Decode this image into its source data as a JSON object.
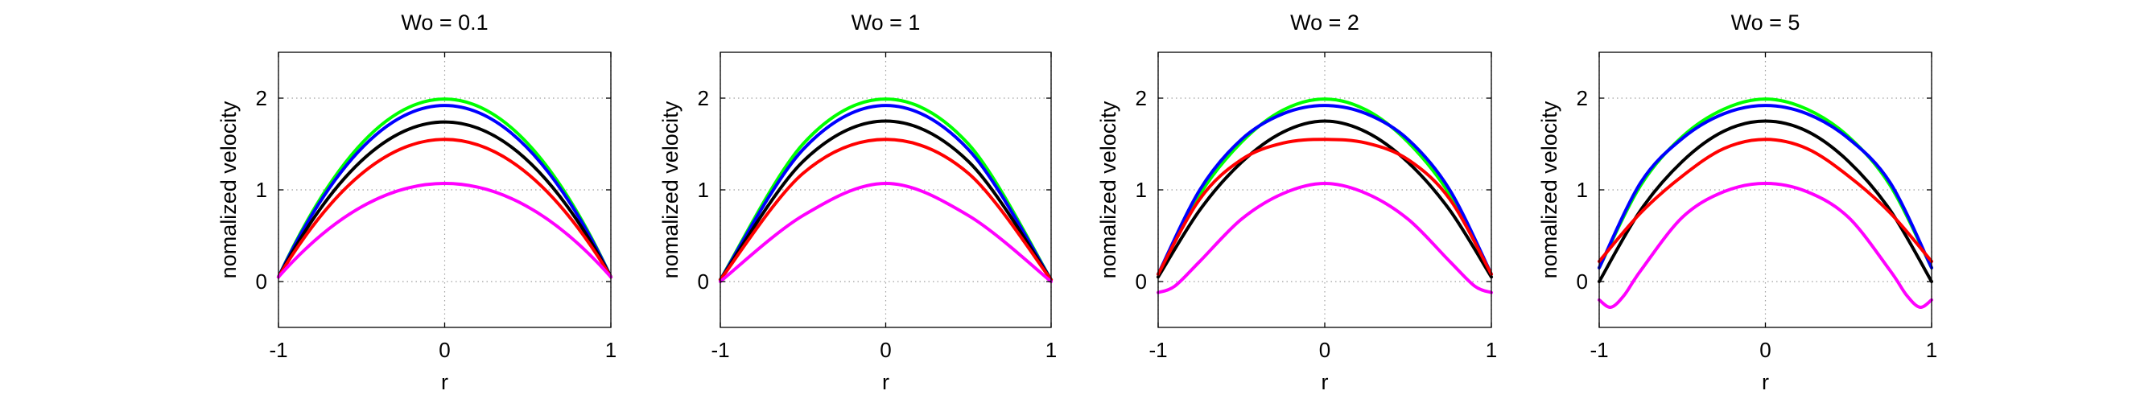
{
  "chart_data": [
    {
      "type": "line",
      "title": "Wo = 0.1",
      "xlabel": "r",
      "ylabel": "nomalized velocity",
      "xlim": [
        -1,
        1
      ],
      "ylim": [
        -0.5,
        2.5
      ],
      "xticks": [
        "-1",
        "0",
        "1"
      ],
      "yticks": [
        "0",
        "1",
        "2"
      ],
      "grid": true,
      "profile_curve": "parabolic",
      "series": [
        {
          "color": "#00ff00",
          "values": [
            {
              "r": -1,
              "v": 0.05
            },
            {
              "r": 0,
              "v": 1.99
            },
            {
              "r": 1,
              "v": 0.05
            }
          ]
        },
        {
          "color": "#0000ff",
          "values": [
            {
              "r": -1,
              "v": 0.05
            },
            {
              "r": 0,
              "v": 1.92
            },
            {
              "r": 1,
              "v": 0.05
            }
          ]
        },
        {
          "color": "#000000",
          "values": [
            {
              "r": -1,
              "v": 0.05
            },
            {
              "r": 0,
              "v": 1.74
            },
            {
              "r": 1,
              "v": 0.05
            }
          ]
        },
        {
          "color": "#ff0000",
          "values": [
            {
              "r": -1,
              "v": 0.05
            },
            {
              "r": 0,
              "v": 1.55
            },
            {
              "r": 1,
              "v": 0.05
            }
          ]
        },
        {
          "color": "#ff00ff",
          "values": [
            {
              "r": -1,
              "v": 0.05
            },
            {
              "r": 0,
              "v": 1.07
            },
            {
              "r": 1,
              "v": 0.05
            }
          ]
        }
      ]
    },
    {
      "type": "line",
      "title": "Wo = 1",
      "xlabel": "r",
      "ylabel": "nomalized velocity",
      "xlim": [
        -1,
        1
      ],
      "ylim": [
        -0.5,
        2.5
      ],
      "xticks": [
        "-1",
        "0",
        "1"
      ],
      "yticks": [
        "0",
        "1",
        "2"
      ],
      "grid": true,
      "series": [
        {
          "color": "#00ff00",
          "values": [
            {
              "r": -1,
              "v": 0.02
            },
            {
              "r": -0.5,
              "v": 1.5
            },
            {
              "r": 0,
              "v": 1.99
            },
            {
              "r": 0.5,
              "v": 1.5
            },
            {
              "r": 1,
              "v": 0.02
            }
          ]
        },
        {
          "color": "#0000ff",
          "values": [
            {
              "r": -1,
              "v": 0.02
            },
            {
              "r": -0.5,
              "v": 1.44
            },
            {
              "r": 0,
              "v": 1.92
            },
            {
              "r": 0.5,
              "v": 1.44
            },
            {
              "r": 1,
              "v": 0.02
            }
          ]
        },
        {
          "color": "#000000",
          "values": [
            {
              "r": -1,
              "v": 0.02
            },
            {
              "r": -0.5,
              "v": 1.31
            },
            {
              "r": 0,
              "v": 1.75
            },
            {
              "r": 0.5,
              "v": 1.31
            },
            {
              "r": 1,
              "v": 0.02
            }
          ]
        },
        {
          "color": "#ff0000",
          "values": [
            {
              "r": -1,
              "v": 0.02
            },
            {
              "r": -0.5,
              "v": 1.18
            },
            {
              "r": 0,
              "v": 1.55
            },
            {
              "r": 0.5,
              "v": 1.18
            },
            {
              "r": 1,
              "v": 0.02
            }
          ]
        },
        {
          "color": "#ff00ff",
          "values": [
            {
              "r": -1,
              "v": 0.0
            },
            {
              "r": -0.5,
              "v": 0.72
            },
            {
              "r": 0,
              "v": 1.07
            },
            {
              "r": 0.5,
              "v": 0.72
            },
            {
              "r": 1,
              "v": 0.0
            }
          ]
        }
      ]
    },
    {
      "type": "line",
      "title": "Wo = 2",
      "xlabel": "r",
      "ylabel": "nomalized velocity",
      "xlim": [
        -1,
        1
      ],
      "ylim": [
        -0.5,
        2.5
      ],
      "xticks": [
        "-1",
        "0",
        "1"
      ],
      "yticks": [
        "0",
        "1",
        "2"
      ],
      "grid": true,
      "series": [
        {
          "color": "#00ff00",
          "values": [
            {
              "r": -1,
              "v": 0.08
            },
            {
              "r": -0.75,
              "v": 0.95
            },
            {
              "r": -0.5,
              "v": 1.52
            },
            {
              "r": -0.25,
              "v": 1.87
            },
            {
              "r": 0,
              "v": 1.99
            },
            {
              "r": 0.25,
              "v": 1.87
            },
            {
              "r": 0.5,
              "v": 1.52
            },
            {
              "r": 0.75,
              "v": 0.95
            },
            {
              "r": 1,
              "v": 0.08
            }
          ]
        },
        {
          "color": "#0000ff",
          "values": [
            {
              "r": -1,
              "v": 0.08
            },
            {
              "r": -0.75,
              "v": 1.0
            },
            {
              "r": -0.5,
              "v": 1.55
            },
            {
              "r": -0.25,
              "v": 1.83
            },
            {
              "r": 0,
              "v": 1.92
            },
            {
              "r": 0.25,
              "v": 1.83
            },
            {
              "r": 0.5,
              "v": 1.55
            },
            {
              "r": 0.75,
              "v": 1.0
            },
            {
              "r": 1,
              "v": 0.08
            }
          ]
        },
        {
          "color": "#000000",
          "values": [
            {
              "r": -1,
              "v": 0.05
            },
            {
              "r": -0.75,
              "v": 0.78
            },
            {
              "r": -0.5,
              "v": 1.3
            },
            {
              "r": -0.25,
              "v": 1.63
            },
            {
              "r": 0,
              "v": 1.75
            },
            {
              "r": 0.25,
              "v": 1.63
            },
            {
              "r": 0.5,
              "v": 1.3
            },
            {
              "r": 0.75,
              "v": 0.78
            },
            {
              "r": 1,
              "v": 0.05
            }
          ]
        },
        {
          "color": "#ff0000",
          "values": [
            {
              "r": -1,
              "v": 0.08
            },
            {
              "r": -0.75,
              "v": 0.9
            },
            {
              "r": -0.5,
              "v": 1.33
            },
            {
              "r": -0.25,
              "v": 1.51
            },
            {
              "r": 0,
              "v": 1.55
            },
            {
              "r": 0.25,
              "v": 1.51
            },
            {
              "r": 0.5,
              "v": 1.33
            },
            {
              "r": 0.75,
              "v": 0.9
            },
            {
              "r": 1,
              "v": 0.08
            }
          ]
        },
        {
          "color": "#ff00ff",
          "values": [
            {
              "r": -1,
              "v": -0.12
            },
            {
              "r": -0.9,
              "v": -0.05
            },
            {
              "r": -0.75,
              "v": 0.22
            },
            {
              "r": -0.5,
              "v": 0.68
            },
            {
              "r": -0.25,
              "v": 0.96
            },
            {
              "r": 0,
              "v": 1.07
            },
            {
              "r": 0.25,
              "v": 0.96
            },
            {
              "r": 0.5,
              "v": 0.68
            },
            {
              "r": 0.75,
              "v": 0.22
            },
            {
              "r": 0.9,
              "v": -0.05
            },
            {
              "r": 1,
              "v": -0.12
            }
          ]
        }
      ]
    },
    {
      "type": "line",
      "title": "Wo = 5",
      "xlabel": "r",
      "ylabel": "nomalized velocity",
      "xlim": [
        -1,
        1
      ],
      "ylim": [
        -0.5,
        2.5
      ],
      "xticks": [
        "-1",
        "0",
        "1"
      ],
      "yticks": [
        "0",
        "1",
        "2"
      ],
      "grid": true,
      "series": [
        {
          "color": "#00ff00",
          "values": [
            {
              "r": -1,
              "v": 0.15
            },
            {
              "r": -0.75,
              "v": 1.05
            },
            {
              "r": -0.5,
              "v": 1.58
            },
            {
              "r": -0.25,
              "v": 1.88
            },
            {
              "r": 0,
              "v": 1.99
            },
            {
              "r": 0.25,
              "v": 1.88
            },
            {
              "r": 0.5,
              "v": 1.58
            },
            {
              "r": 0.75,
              "v": 1.05
            },
            {
              "r": 1,
              "v": 0.15
            }
          ]
        },
        {
          "color": "#0000ff",
          "values": [
            {
              "r": -1,
              "v": 0.15
            },
            {
              "r": -0.75,
              "v": 1.08
            },
            {
              "r": -0.5,
              "v": 1.56
            },
            {
              "r": -0.25,
              "v": 1.83
            },
            {
              "r": 0,
              "v": 1.92
            },
            {
              "r": 0.25,
              "v": 1.83
            },
            {
              "r": 0.5,
              "v": 1.56
            },
            {
              "r": 0.75,
              "v": 1.08
            },
            {
              "r": 1,
              "v": 0.15
            }
          ]
        },
        {
          "color": "#000000",
          "values": [
            {
              "r": -1,
              "v": 0.0
            },
            {
              "r": -0.75,
              "v": 0.78
            },
            {
              "r": -0.5,
              "v": 1.31
            },
            {
              "r": -0.25,
              "v": 1.64
            },
            {
              "r": 0,
              "v": 1.75
            },
            {
              "r": 0.25,
              "v": 1.64
            },
            {
              "r": 0.5,
              "v": 1.31
            },
            {
              "r": 0.75,
              "v": 0.78
            },
            {
              "r": 1,
              "v": 0.0
            }
          ]
        },
        {
          "color": "#ff0000",
          "values": [
            {
              "r": -1,
              "v": 0.22
            },
            {
              "r": -0.75,
              "v": 0.75
            },
            {
              "r": -0.5,
              "v": 1.15
            },
            {
              "r": -0.25,
              "v": 1.45
            },
            {
              "r": 0,
              "v": 1.55
            },
            {
              "r": 0.25,
              "v": 1.45
            },
            {
              "r": 0.5,
              "v": 1.15
            },
            {
              "r": 0.75,
              "v": 0.75
            },
            {
              "r": 1,
              "v": 0.22
            }
          ]
        },
        {
          "color": "#ff00ff",
          "values": [
            {
              "r": -1,
              "v": -0.2
            },
            {
              "r": -0.93,
              "v": -0.28
            },
            {
              "r": -0.85,
              "v": -0.15
            },
            {
              "r": -0.75,
              "v": 0.12
            },
            {
              "r": -0.5,
              "v": 0.7
            },
            {
              "r": -0.25,
              "v": 0.98
            },
            {
              "r": 0,
              "v": 1.07
            },
            {
              "r": 0.25,
              "v": 0.98
            },
            {
              "r": 0.5,
              "v": 0.7
            },
            {
              "r": 0.75,
              "v": 0.12
            },
            {
              "r": 0.85,
              "v": -0.15
            },
            {
              "r": 0.93,
              "v": -0.28
            },
            {
              "r": 1,
              "v": -0.2
            }
          ]
        }
      ]
    }
  ]
}
